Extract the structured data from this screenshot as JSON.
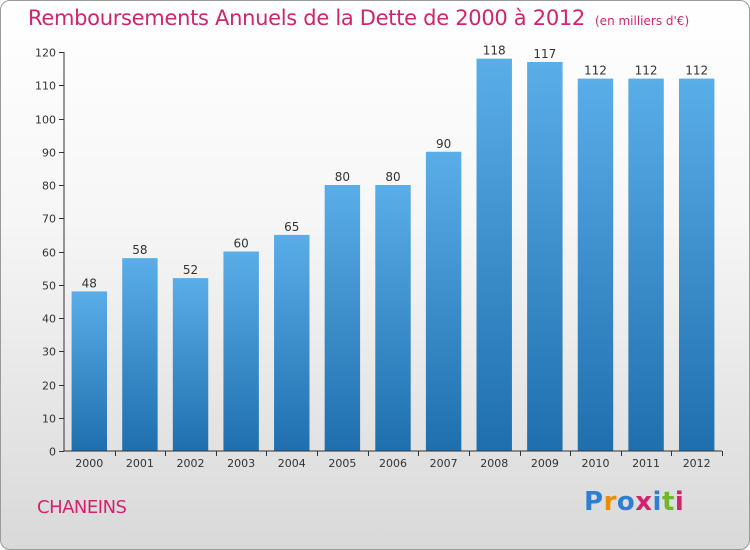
{
  "title": "Remboursements Annuels de la Dette de 2000 à 2012",
  "unit": "(en milliers d'€)",
  "commune": "CHANEINS",
  "logo": {
    "text": "Proxiti",
    "letters": [
      "P",
      "r",
      "o",
      "x",
      "i",
      "t",
      "i"
    ],
    "colors": [
      "#2e7fd1",
      "#f08a00",
      "#2e7fd1",
      "#d0246e",
      "#2e7fd1",
      "#70b829",
      "#d0246e"
    ]
  },
  "colors": {
    "title": "#d0246e",
    "bar_top": "#5aaee8",
    "bar_bottom": "#1f6fae",
    "axis": "#333333",
    "tick_text": "#333333"
  },
  "chart_data": {
    "type": "bar",
    "categories": [
      "2000",
      "2001",
      "2002",
      "2003",
      "2004",
      "2005",
      "2006",
      "2007",
      "2008",
      "2009",
      "2010",
      "2011",
      "2012"
    ],
    "values": [
      48,
      58,
      52,
      60,
      65,
      80,
      80,
      90,
      118,
      117,
      112,
      112,
      112
    ],
    "ylim": [
      0,
      120
    ],
    "yticks": [
      0,
      10,
      20,
      30,
      40,
      50,
      60,
      70,
      80,
      90,
      100,
      110,
      120
    ],
    "grid": false,
    "legend": "none"
  }
}
